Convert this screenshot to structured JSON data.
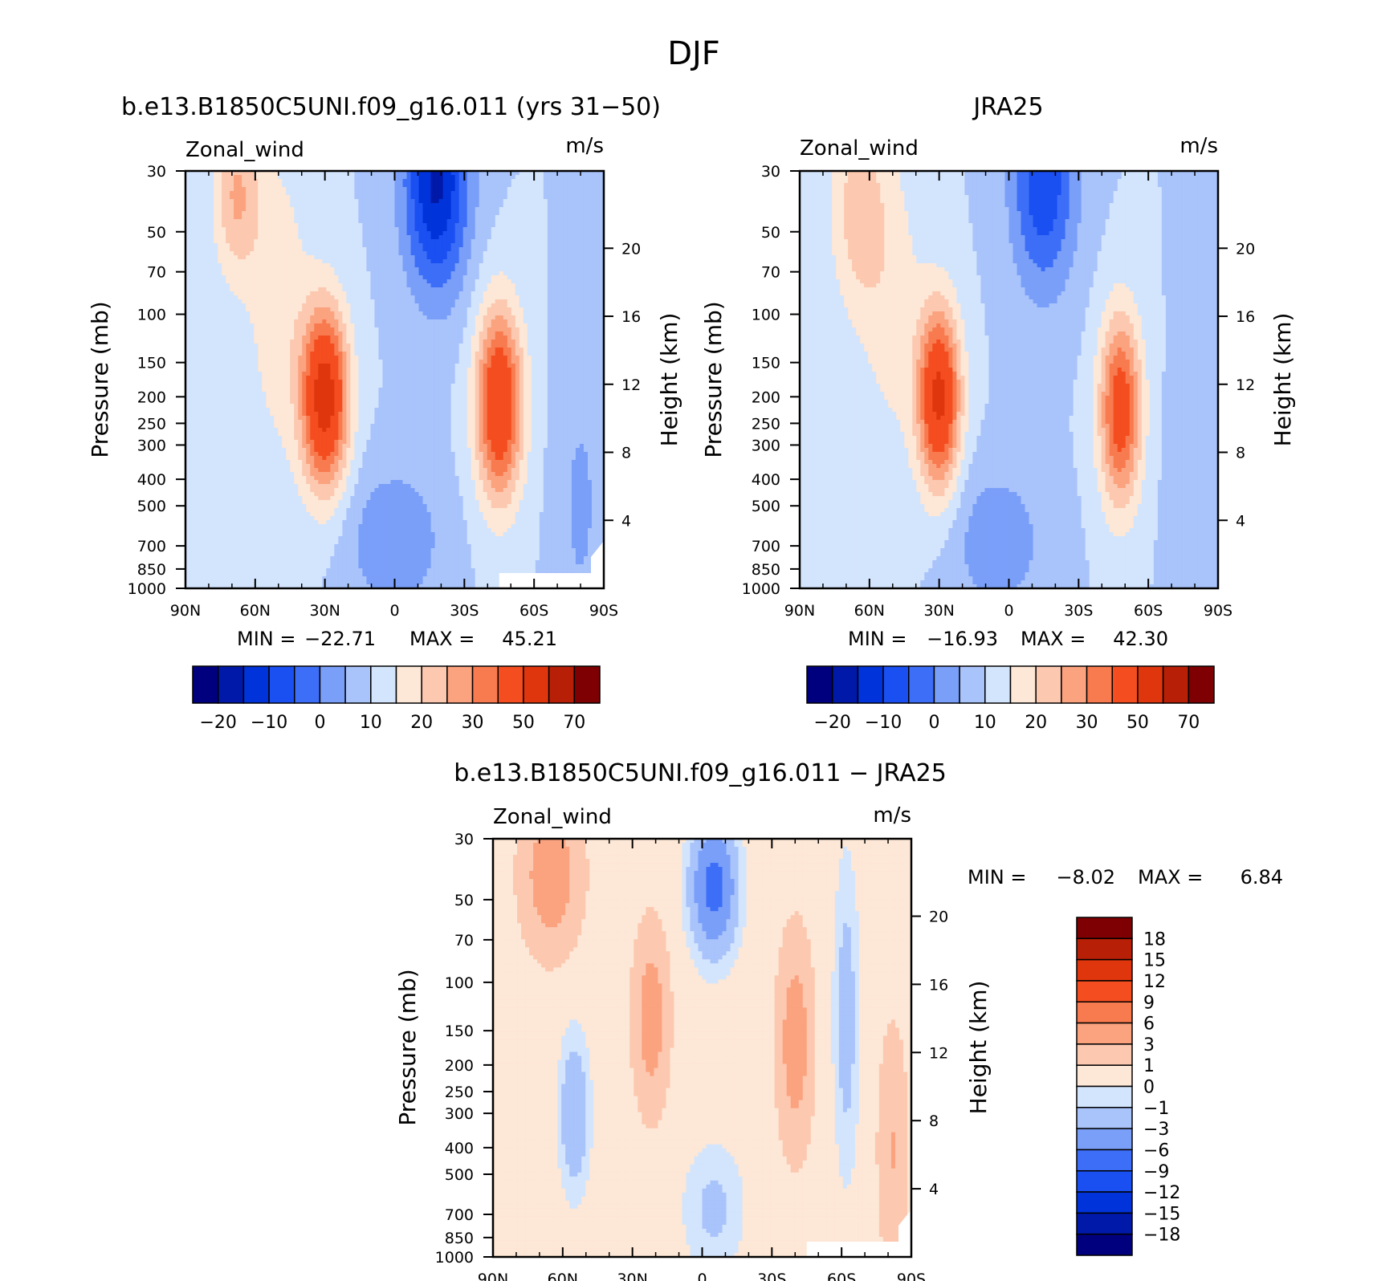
{
  "figure": {
    "title": "DJF"
  },
  "colors": {
    "abs": [
      "#00007f",
      "#0019a8",
      "#0033d9",
      "#1a4ff2",
      "#3d6ef7",
      "#7a9ff9",
      "#a9c3fb",
      "#d3e5fc",
      "#fde7d6",
      "#fcc8b0",
      "#fba27f",
      "#f87a4f",
      "#f44d1f",
      "#e0360e",
      "#b81f07",
      "#7e0003"
    ],
    "diff": [
      "#00007f",
      "#0019a8",
      "#0033d9",
      "#1a4ff2",
      "#3d6ef7",
      "#7a9ff9",
      "#a9c3fb",
      "#d3e5fc",
      "#fde7d6",
      "#fcc8b0",
      "#fba27f",
      "#f87a4f",
      "#f44d1f",
      "#e0360e",
      "#b81f07",
      "#7e0003"
    ]
  },
  "chart_data": [
    {
      "type": "contour",
      "title": "b.e13.B1850C5UNI.f09_g16.011 (yrs 31−50)",
      "left_label": "Zonal_wind",
      "right_label": "m/s",
      "ylabel": "Pressure (mb)",
      "y2label": "Height (km)",
      "x_ticks": [
        "90N",
        "60N",
        "30N",
        "0",
        "30S",
        "60S",
        "90S"
      ],
      "y_ticks": [
        "30",
        "50",
        "70",
        "100",
        "150",
        "200",
        "250",
        "300",
        "400",
        "500",
        "700",
        "850",
        "1000"
      ],
      "y2_ticks": [
        "20",
        "16",
        "12",
        "8",
        "4"
      ],
      "stats": {
        "min_label": "MIN =",
        "min": "−22.71",
        "max_label": "MAX =",
        "max": "45.21"
      },
      "colorbar_labels": [
        "−20",
        "−10",
        "0",
        "10",
        "20",
        "30",
        "50",
        "70"
      ],
      "jets": [
        {
          "lat": -30,
          "p": 200,
          "max": 45.21
        },
        {
          "lat": 45,
          "p": 220,
          "max": 38
        }
      ],
      "min": -22.71,
      "max": 45.21
    },
    {
      "type": "contour",
      "title": "JRA25",
      "left_label": "Zonal_wind",
      "right_label": "m/s",
      "ylabel": "Pressure (mb)",
      "y2label": "Height (km)",
      "x_ticks": [
        "90N",
        "60N",
        "30N",
        "0",
        "30S",
        "60S",
        "90S"
      ],
      "y_ticks": [
        "30",
        "50",
        "70",
        "100",
        "150",
        "200",
        "250",
        "300",
        "400",
        "500",
        "700",
        "850",
        "1000"
      ],
      "y2_ticks": [
        "20",
        "16",
        "12",
        "8",
        "4"
      ],
      "stats": {
        "min_label": "MIN =",
        "min": "−16.93",
        "max_label": "MAX =",
        "max": "42.30"
      },
      "colorbar_labels": [
        "−20",
        "−10",
        "0",
        "10",
        "20",
        "30",
        "50",
        "70"
      ],
      "jets": [
        {
          "lat": -30,
          "p": 200,
          "max": 42.3
        },
        {
          "lat": 48,
          "p": 250,
          "max": 35
        }
      ],
      "min": -16.93,
      "max": 42.3
    },
    {
      "type": "contour",
      "title": "b.e13.B1850C5UNI.f09_g16.011 − JRA25",
      "left_label": "Zonal_wind",
      "right_label": "m/s",
      "ylabel": "Pressure (mb)",
      "y2label": "Height (km)",
      "x_ticks": [
        "90N",
        "60N",
        "30N",
        "0",
        "30S",
        "60S",
        "90S"
      ],
      "y_ticks": [
        "30",
        "50",
        "70",
        "100",
        "150",
        "200",
        "250",
        "300",
        "400",
        "500",
        "700",
        "850",
        "1000"
      ],
      "y2_ticks": [
        "20",
        "16",
        "12",
        "8",
        "4"
      ],
      "stats": {
        "min_label": "MIN =",
        "min": "−8.02",
        "max_label": "MAX =",
        "max": "6.84"
      },
      "colorbar_labels": [
        "18",
        "15",
        "12",
        "9",
        "6",
        "3",
        "1",
        "0",
        "−1",
        "−3",
        "−6",
        "−9",
        "−12",
        "−15",
        "−18"
      ],
      "min": -8.02,
      "max": 6.84
    }
  ]
}
